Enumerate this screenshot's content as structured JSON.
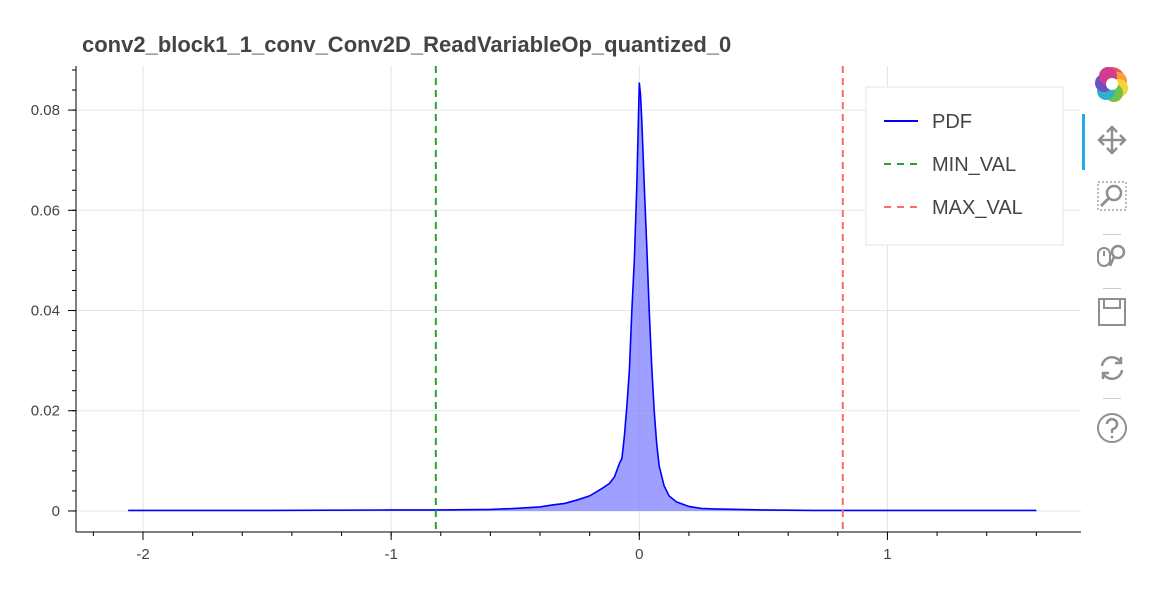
{
  "chart_data": {
    "type": "area",
    "title": "conv2_block1_1_conv_Conv2D_ReadVariableOp_quantized_0",
    "xlabel": "",
    "ylabel": "",
    "xlim": [
      -2.27,
      1.78
    ],
    "ylim": [
      -0.0042,
      0.0888
    ],
    "x_ticks": [
      -2,
      -1,
      0,
      1
    ],
    "x_tick_labels": [
      "-2",
      "-1",
      "0",
      "1"
    ],
    "y_ticks": [
      0,
      0.02,
      0.04,
      0.06,
      0.08
    ],
    "y_tick_labels": [
      "0",
      "0.02",
      "0.04",
      "0.06",
      "0.08"
    ],
    "grid": true,
    "legend_position": "top-right",
    "series": [
      {
        "name": "PDF",
        "style": "line-with-fill",
        "color": "#0000ff",
        "fill_color": "#7f7fff",
        "x": [
          -2.06,
          -1.5,
          -1.0,
          -0.8,
          -0.6,
          -0.5,
          -0.4,
          -0.35,
          -0.3,
          -0.25,
          -0.2,
          -0.15,
          -0.12,
          -0.1,
          -0.08,
          -0.07,
          -0.06,
          -0.05,
          -0.04,
          -0.03,
          -0.02,
          -0.01,
          0.0,
          0.005,
          0.01,
          0.02,
          0.03,
          0.04,
          0.05,
          0.06,
          0.07,
          0.08,
          0.1,
          0.12,
          0.15,
          0.2,
          0.25,
          0.3,
          0.4,
          0.5,
          0.7,
          1.0,
          1.3,
          1.6
        ],
        "y": [
          0.0001,
          0.0001,
          0.0002,
          0.0002,
          0.0003,
          0.0005,
          0.0008,
          0.0012,
          0.0015,
          0.0022,
          0.003,
          0.0045,
          0.0055,
          0.0068,
          0.0095,
          0.0105,
          0.015,
          0.021,
          0.028,
          0.04,
          0.05,
          0.065,
          0.0855,
          0.083,
          0.078,
          0.065,
          0.053,
          0.04,
          0.029,
          0.02,
          0.0135,
          0.009,
          0.005,
          0.003,
          0.0018,
          0.0009,
          0.0005,
          0.0004,
          0.0003,
          0.0002,
          0.0001,
          0.0001,
          0.0001,
          0.0001
        ]
      },
      {
        "name": "MIN_VAL",
        "style": "dashed",
        "color": "#2ca02c",
        "x_value": -0.82
      },
      {
        "name": "MAX_VAL",
        "style": "dashed",
        "color": "#ff6b6b",
        "x_value": 0.82
      }
    ]
  },
  "toolbar": {
    "logo_icon": "bokeh-logo-icon",
    "pan_icon": "pan-move-icon",
    "box_zoom_icon": "box-zoom-icon",
    "wheel_zoom_icon": "wheel-zoom-icon",
    "save_icon": "save-icon",
    "reset_icon": "reset-icon",
    "help_icon": "help-icon"
  }
}
